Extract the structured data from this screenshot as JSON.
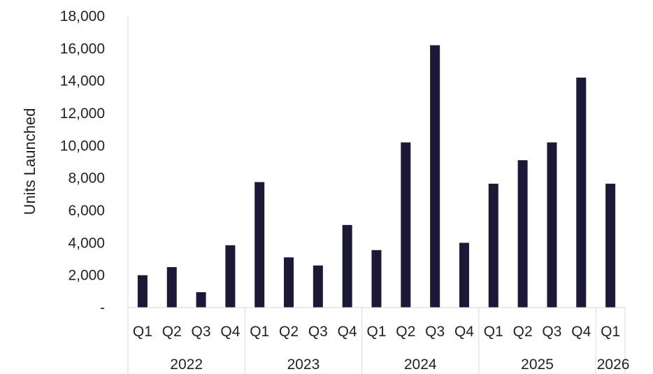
{
  "chart_data": {
    "type": "bar",
    "ylabel": "Units Launched",
    "ylim": [
      0,
      18000
    ],
    "y_ticks": [
      0,
      2000,
      4000,
      6000,
      8000,
      10000,
      12000,
      14000,
      16000,
      18000
    ],
    "y_tick_labels": [
      "-",
      "2,000",
      "4,000",
      "6,000",
      "8,000",
      "10,000",
      "12,000",
      "14,000",
      "16,000",
      "18,000"
    ],
    "categories": [
      "Q1",
      "Q2",
      "Q3",
      "Q4",
      "Q1",
      "Q2",
      "Q3",
      "Q4",
      "Q1",
      "Q2",
      "Q3",
      "Q4",
      "Q1",
      "Q2",
      "Q3",
      "Q4",
      "Q1"
    ],
    "groups": [
      {
        "label": "2022",
        "count": 4
      },
      {
        "label": "2023",
        "count": 4
      },
      {
        "label": "2024",
        "count": 4
      },
      {
        "label": "2025",
        "count": 4
      },
      {
        "label": "2026",
        "count": 1
      }
    ],
    "values": [
      2000,
      2500,
      950,
      3850,
      7750,
      3100,
      2600,
      5100,
      3550,
      10200,
      16200,
      4000,
      7650,
      9100,
      10200,
      14200,
      7650
    ],
    "bar_color": "#1c1838",
    "axis_color": "#d9d9d9",
    "grid": false,
    "legend": "none"
  }
}
